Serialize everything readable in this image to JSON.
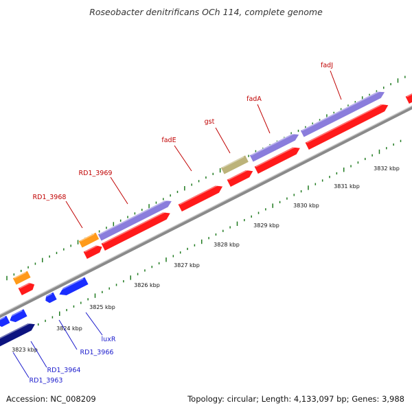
{
  "title": "Roseobacter denitrificans OCh 114, complete genome",
  "footer": {
    "accession": "Accession: NC_008209",
    "summary": "Topology: circular; Length: 4,133,097 bp; Genes: 3,988"
  },
  "colors": {
    "backbone": "#8a8a8a",
    "tick": "#1f7a1f",
    "cds": "#ff1a1a",
    "gene_purple": "#8a7ddc",
    "gene_orange": "#ff9a1a",
    "gene_tan": "#bcb37a",
    "gene_blue": "#1a2dff",
    "gene_navy": "#0d1480",
    "label_red": "#c00000",
    "label_blue": "#1a1acc"
  },
  "tick_labels": [
    "3823 kbp",
    "3824 kbp",
    "3825 kbp",
    "3826 kbp",
    "3827 kbp",
    "3828 kbp",
    "3829 kbp",
    "3830 kbp",
    "3831 kbp",
    "3832 kbp"
  ],
  "gene_labels": [
    {
      "text": "fadJ",
      "color": "red"
    },
    {
      "text": "fadA",
      "color": "red"
    },
    {
      "text": "gst",
      "color": "red"
    },
    {
      "text": "fadE",
      "color": "red"
    },
    {
      "text": "RD1_3969",
      "color": "red"
    },
    {
      "text": "RD1_3968",
      "color": "red"
    },
    {
      "text": "luxR",
      "color": "blue"
    },
    {
      "text": "RD1_3966",
      "color": "blue"
    },
    {
      "text": "RD1_3964",
      "color": "blue"
    },
    {
      "text": "RD1_3963",
      "color": "blue"
    }
  ]
}
